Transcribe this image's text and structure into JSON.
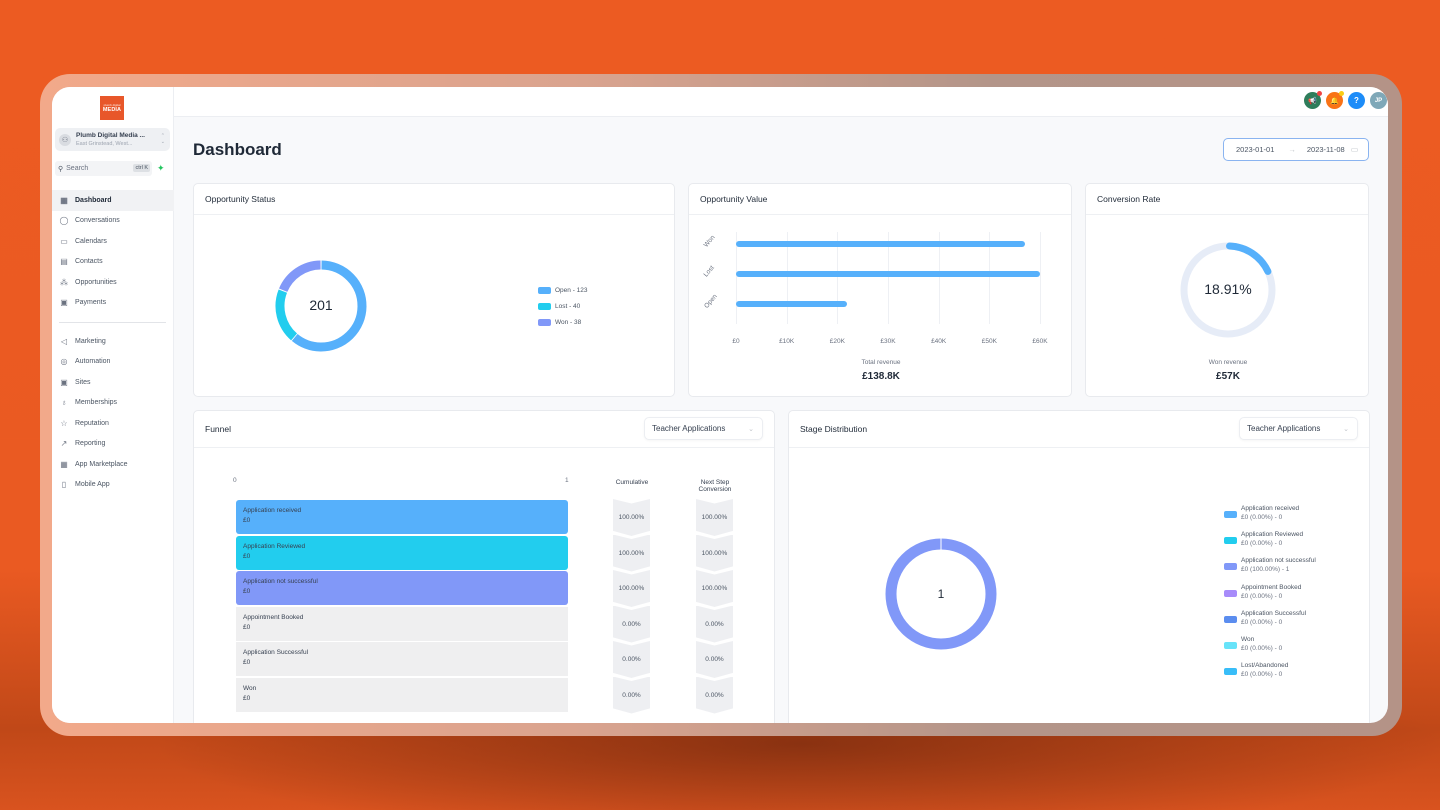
{
  "sidebar": {
    "logo": {
      "small": "plumb digital",
      "big": "MEDIA",
      "color": "#e8572a"
    },
    "account": {
      "name": "Plumb Digital Media ...",
      "location": "East Grinstead, West..."
    },
    "search": {
      "label": "Search",
      "shortcut": "ctrl K"
    },
    "nav_primary": [
      {
        "label": "Dashboard",
        "icon": "grid-icon",
        "glyph": "▦",
        "active": true
      },
      {
        "label": "Conversations",
        "icon": "chat-bubble-icon",
        "glyph": "◯",
        "active": false
      },
      {
        "label": "Calendars",
        "icon": "calendar-icon",
        "glyph": "▭",
        "active": false
      },
      {
        "label": "Contacts",
        "icon": "contact-book-icon",
        "glyph": "▤",
        "active": false
      },
      {
        "label": "Opportunities",
        "icon": "opportunities-icon",
        "glyph": "⁂",
        "active": false
      },
      {
        "label": "Payments",
        "icon": "payments-icon",
        "glyph": "▣",
        "active": false
      }
    ],
    "nav_secondary": [
      {
        "label": "Marketing",
        "icon": "send-icon",
        "glyph": "◁"
      },
      {
        "label": "Automation",
        "icon": "automation-icon",
        "glyph": "◎"
      },
      {
        "label": "Sites",
        "icon": "sites-icon",
        "glyph": "▣"
      },
      {
        "label": "Memberships",
        "icon": "badge-icon",
        "glyph": "♁"
      },
      {
        "label": "Reputation",
        "icon": "star-icon",
        "glyph": "☆"
      },
      {
        "label": "Reporting",
        "icon": "trend-icon",
        "glyph": "↗"
      },
      {
        "label": "App Marketplace",
        "icon": "apps-grid-icon",
        "glyph": "▦"
      },
      {
        "label": "Mobile App",
        "icon": "mobile-icon",
        "glyph": "▯"
      }
    ]
  },
  "topbar": {
    "buttons": [
      {
        "name": "announcements",
        "glyph": "📢",
        "bg": "#2f7d5b",
        "dot": "#ef4444"
      },
      {
        "name": "notifications",
        "glyph": "🔔",
        "bg": "#f97316",
        "dot": "#facc15"
      },
      {
        "name": "help",
        "glyph": "?",
        "bg": "#1d8cf8",
        "dot": null
      },
      {
        "name": "user-avatar",
        "glyph": "JP",
        "bg": "#7fa8b8",
        "dot": null
      }
    ]
  },
  "page": {
    "title": "Dashboard",
    "date_range": {
      "start": "2023-01-01",
      "end": "2023-11-08",
      "arrow": "→"
    }
  },
  "cards": {
    "opportunity_status": {
      "title": "Opportunity Status",
      "total": "201",
      "legend": [
        {
          "label": "Open - 123",
          "color": "#56b0fb"
        },
        {
          "label": "Lost - 40",
          "color": "#22cdee"
        },
        {
          "label": "Won - 38",
          "color": "#8198f8"
        }
      ]
    },
    "opportunity_value": {
      "title": "Opportunity Value",
      "summary_label": "Total revenue",
      "summary_value": "£138.8K"
    },
    "conversion_rate": {
      "title": "Conversion Rate",
      "value": "18.91%",
      "summary_label": "Won revenue",
      "summary_value": "£57K"
    },
    "funnel": {
      "title": "Funnel",
      "dropdown": "Teacher Applications",
      "axis_min": "0",
      "axis_max": "1",
      "col_cumulative": "Cumulative",
      "col_next_step": "Next Step Conversion",
      "rows": [
        {
          "stage": "Application received",
          "value": "£0",
          "cumulative": "100.00%",
          "next": "100.00%",
          "color": "#56b0fb"
        },
        {
          "stage": "Application Reviewed",
          "value": "£0",
          "cumulative": "100.00%",
          "next": "100.00%",
          "color": "#22cdee"
        },
        {
          "stage": "Application not successful",
          "value": "£0",
          "cumulative": "100.00%",
          "next": "100.00%",
          "color": "#8198f8"
        },
        {
          "stage": "Appointment Booked",
          "value": "£0",
          "cumulative": "0.00%",
          "next": "0.00%",
          "color": "#efeff0"
        },
        {
          "stage": "Application Successful",
          "value": "£0",
          "cumulative": "0.00%",
          "next": "0.00%",
          "color": "#efeff0"
        },
        {
          "stage": "Won",
          "value": "£0",
          "cumulative": "0.00%",
          "next": "0.00%",
          "color": "#efeff0"
        }
      ]
    },
    "stage_distribution": {
      "title": "Stage Distribution",
      "dropdown": "Teacher Applications",
      "total": "1",
      "legend": [
        {
          "stage": "Application received",
          "detail": "£0 (0.00%) - 0",
          "color": "#56b0fb"
        },
        {
          "stage": "Application Reviewed",
          "detail": "£0 (0.00%) - 0",
          "color": "#22cdee"
        },
        {
          "stage": "Application not successful",
          "detail": "£0 (100.00%) - 1",
          "color": "#8198f8"
        },
        {
          "stage": "Appointment Booked",
          "detail": "£0 (0.00%) - 0",
          "color": "#a78bfa"
        },
        {
          "stage": "Application Successful",
          "detail": "£0 (0.00%) - 0",
          "color": "#5b8def"
        },
        {
          "stage": "Won",
          "detail": "£0 (0.00%) - 0",
          "color": "#67e3f9"
        },
        {
          "stage": "Lost/Abandoned",
          "detail": "£0 (0.00%) - 0",
          "color": "#38bdf8"
        }
      ]
    }
  },
  "chart_data": [
    {
      "type": "pie",
      "title": "Opportunity Status",
      "categories": [
        "Open",
        "Lost",
        "Won"
      ],
      "values": [
        123,
        40,
        38
      ],
      "center_label": "201",
      "colors": [
        "#56b0fb",
        "#22cdee",
        "#8198f8"
      ],
      "legend_position": "right"
    },
    {
      "type": "bar",
      "orientation": "horizontal",
      "title": "Opportunity Value",
      "categories": [
        "Won",
        "Lost",
        "Open"
      ],
      "values": [
        57000,
        60000,
        22000
      ],
      "xticks": [
        "£0",
        "£10K",
        "£20K",
        "£30K",
        "£40K",
        "£50K",
        "£60K"
      ],
      "xlim": [
        0,
        60000
      ],
      "grid": true,
      "color": "#56b0fb",
      "xlabel": "Total revenue",
      "summary": "£138.8K"
    },
    {
      "type": "pie",
      "title": "Conversion Rate",
      "categories": [
        "Won",
        "Remaining"
      ],
      "values": [
        18.91,
        81.09
      ],
      "center_label": "18.91%",
      "colors": [
        "#56b0fb",
        "#e6ecf7"
      ],
      "summary_label": "Won revenue",
      "summary": "£57K"
    },
    {
      "type": "bar",
      "title": "Funnel",
      "categories": [
        "Application received",
        "Application Reviewed",
        "Application not successful",
        "Appointment Booked",
        "Application Successful",
        "Won"
      ],
      "values": [
        1,
        1,
        1,
        0,
        0,
        0
      ],
      "xlim": [
        0,
        1
      ],
      "series": [
        {
          "name": "Cumulative",
          "values": [
            100,
            100,
            100,
            0,
            0,
            0
          ]
        },
        {
          "name": "Next Step Conversion",
          "values": [
            100,
            100,
            100,
            0,
            0,
            0
          ]
        }
      ]
    },
    {
      "type": "pie",
      "title": "Stage Distribution",
      "categories": [
        "Application received",
        "Application Reviewed",
        "Application not successful",
        "Appointment Booked",
        "Application Successful",
        "Won",
        "Lost/Abandoned"
      ],
      "values": [
        0,
        0,
        1,
        0,
        0,
        0,
        0
      ],
      "center_label": "1",
      "legend_position": "right"
    }
  ]
}
